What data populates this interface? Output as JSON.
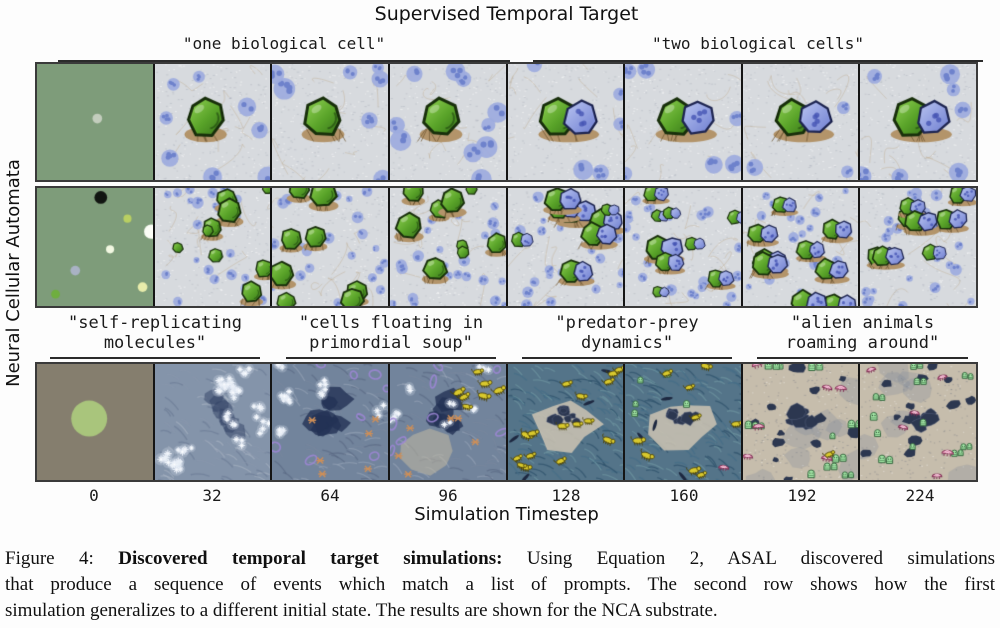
{
  "title": "Supervised Temporal Target",
  "y_axis_label": "Neural Cellular Automata",
  "x_axis_label": "Simulation Timestep",
  "timesteps": [
    "0",
    "32",
    "64",
    "96",
    "128",
    "160",
    "192",
    "224"
  ],
  "prompt_groups_top": [
    {
      "text": "\"one biological cell\"",
      "col_start": 0,
      "col_span": 4
    },
    {
      "text": "\"two biological cells\"",
      "col_start": 4,
      "col_span": 4
    }
  ],
  "prompt_groups_bottom": [
    {
      "line1": "\"self-replicating",
      "line2": "molecules\"",
      "col_start": 0,
      "col_span": 2
    },
    {
      "line1": "\"cells floating in",
      "line2": "primordial soup\"",
      "col_start": 2,
      "col_span": 2
    },
    {
      "line1": "\"predator-prey",
      "line2": "dynamics\"",
      "col_start": 4,
      "col_span": 2
    },
    {
      "line1": "\"alien animals",
      "line2": "roaming around\"",
      "col_start": 6,
      "col_span": 2
    }
  ],
  "caption": {
    "line1_prefix": "Figure 4: ",
    "line1_bold": "Discovered temporal target simulations:",
    "line1_rest": "  Using Equation 2, ASAL discovered simulations",
    "line2": "that produce a sequence of events which match a list of prompts.  The second row shows how the first",
    "line3": "simulation generalizes to a different initial state.  The results are shown for the NCA substrate."
  },
  "palette": {
    "init_green_bg": "#7e9c7a",
    "init_taupe_bg": "#857e6e",
    "bio_bg": "#d7dade",
    "blue_cluster": "#9dabde",
    "blue_cluster_inner": "#6e82cc",
    "green_cell": "#58a228",
    "green_cell_light": "#93d455",
    "green_cell_dark": "#35701a",
    "green_outline": "#182f0b",
    "blue_cell": "#8e9de2",
    "blue_cell_light": "#bcc7f2",
    "blue_cell_dark": "#6c7cd0",
    "blue_outline": "#1d2450",
    "nest": "#b3946a",
    "molecule_bg": "#8494aa",
    "star_white": "#eef3fa",
    "soup_bg": "#72849c",
    "dark_blob": "#23325a",
    "purple_ring": "#9d86d6",
    "orange_critter": "#cf8f57",
    "grass_bg": "#547489",
    "yellow_animal": "#d9c92e",
    "rock_navy": "#2c3750",
    "ground_tan": "#c6bdac",
    "alien_green": "#a6eba9",
    "pink_creature": "#e289ad",
    "underline": "#2b2b2b",
    "frame_border": "#151515"
  },
  "rows": [
    {
      "name": "nca-simulation-row-1",
      "frames": [
        {
          "scene": "flat",
          "seed": 11,
          "bg": "#7e9c7a",
          "dots": [
            {
              "x": 0.52,
              "y": 0.47,
              "r": 0.042,
              "c": "#c3cdbd"
            }
          ]
        },
        {
          "scene": "bio",
          "seed": 21,
          "pair": false
        },
        {
          "scene": "bio",
          "seed": 22,
          "pair": false
        },
        {
          "scene": "bio",
          "seed": 23,
          "pair": false
        },
        {
          "scene": "bio",
          "seed": 24,
          "pair": true
        },
        {
          "scene": "bio",
          "seed": 25,
          "pair": true
        },
        {
          "scene": "bio",
          "seed": 26,
          "pair": true
        },
        {
          "scene": "bio",
          "seed": 27,
          "pair": true
        }
      ]
    },
    {
      "name": "nca-simulation-row-2-different-init",
      "frames": [
        {
          "scene": "flat",
          "seed": 31,
          "bg": "#7e9c7a",
          "dots": [
            {
              "x": 0.55,
              "y": 0.08,
              "r": 0.055,
              "c": "#111511"
            },
            {
              "x": 0.78,
              "y": 0.26,
              "r": 0.035,
              "c": "#b9cf62"
            },
            {
              "x": 0.985,
              "y": 0.37,
              "r": 0.062,
              "c": "#fbfdf6"
            },
            {
              "x": 0.63,
              "y": 0.52,
              "r": 0.035,
              "c": "#f2f8e2"
            },
            {
              "x": 0.33,
              "y": 0.7,
              "r": 0.042,
              "c": "#a9b2c4"
            },
            {
              "x": 0.16,
              "y": 0.9,
              "r": 0.038,
              "c": "#6fae3f"
            },
            {
              "x": 0.91,
              "y": 0.84,
              "r": 0.042,
              "c": "#e8ecab"
            }
          ]
        },
        {
          "scene": "bio_many",
          "seed": 41,
          "pair": false
        },
        {
          "scene": "bio_many",
          "seed": 42,
          "pair": false
        },
        {
          "scene": "bio_many",
          "seed": 43,
          "pair": false
        },
        {
          "scene": "bio_many",
          "seed": 44,
          "pair": true
        },
        {
          "scene": "bio_many",
          "seed": 45,
          "pair": true
        },
        {
          "scene": "bio_many",
          "seed": 46,
          "pair": true
        },
        {
          "scene": "bio_many",
          "seed": 47,
          "pair": true
        }
      ]
    },
    {
      "name": "nca-simulation-row-3",
      "frames": [
        {
          "scene": "flat",
          "seed": 51,
          "bg": "#857e6e",
          "dots": [
            {
              "x": 0.45,
              "y": 0.47,
              "r": 0.155,
              "c": "#a9c57c"
            }
          ]
        },
        {
          "scene": "molecules",
          "seed": 61
        },
        {
          "scene": "soup",
          "seed": 62,
          "animals": 0
        },
        {
          "scene": "soup",
          "seed": 63,
          "animals": 7
        },
        {
          "scene": "predator",
          "seed": 64,
          "animals": 16,
          "aliens": 0
        },
        {
          "scene": "predator",
          "seed": 65,
          "animals": 9,
          "aliens": 5
        },
        {
          "scene": "alien",
          "seed": 66,
          "animals": 1
        },
        {
          "scene": "alien",
          "seed": 67,
          "animals": 0
        }
      ]
    }
  ],
  "layout_note": "figure panel with 3 rows x 8 simulation frames"
}
